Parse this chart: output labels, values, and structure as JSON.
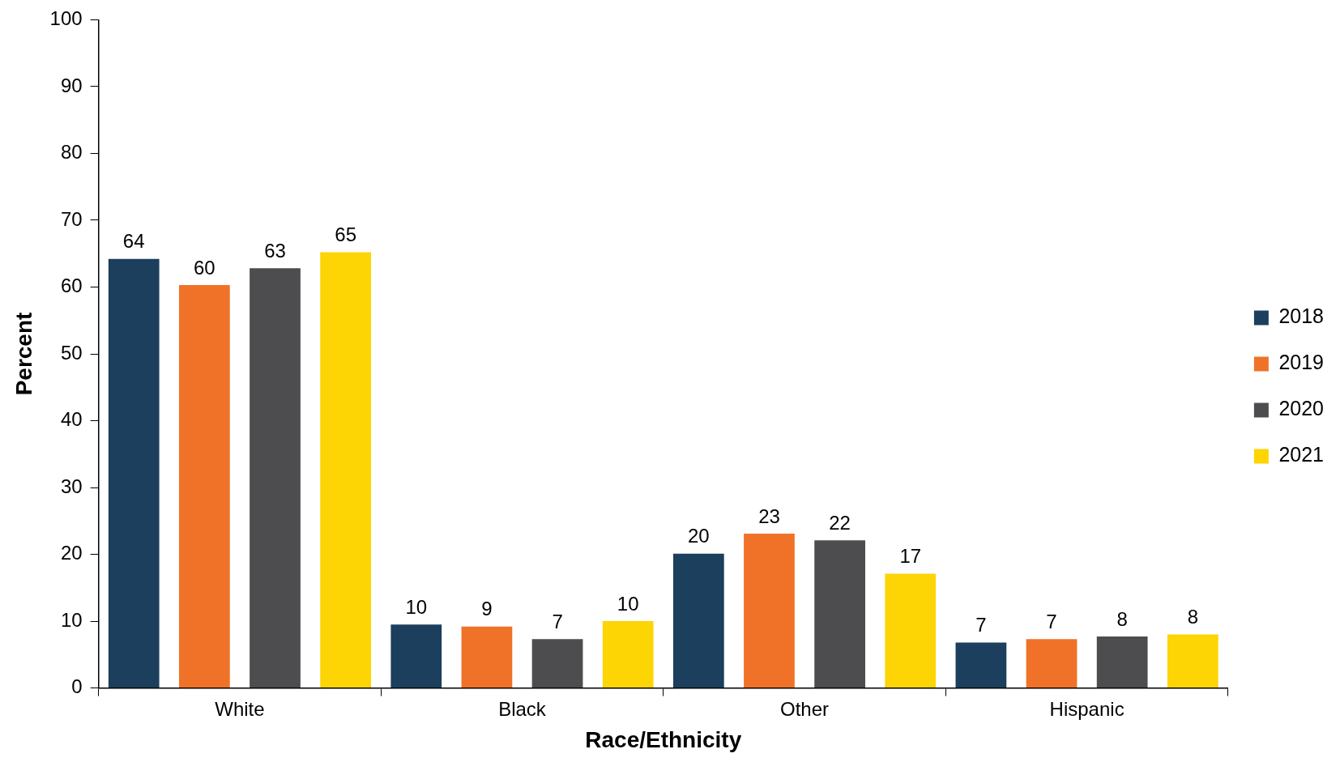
{
  "chart_data": {
    "type": "bar",
    "xlabel": "Race/Ethnicity",
    "ylabel": "Percent",
    "categories": [
      "White",
      "Black",
      "Other",
      "Hispanic"
    ],
    "series": [
      {
        "name": "2018",
        "color": "#1b3f5c",
        "values": [
          64.2,
          9.5,
          20.1,
          6.8
        ],
        "value_labels": [
          "64",
          "10",
          "20",
          "7"
        ]
      },
      {
        "name": "2019",
        "color": "#f07228",
        "values": [
          60.3,
          9.2,
          23.1,
          7.3
        ],
        "value_labels": [
          "60",
          "9",
          "23",
          "7"
        ]
      },
      {
        "name": "2020",
        "color": "#4d4d4f",
        "values": [
          62.8,
          7.3,
          22.1,
          7.7
        ],
        "value_labels": [
          "63",
          "7",
          "22",
          "8"
        ]
      },
      {
        "name": "2021",
        "color": "#fdd404",
        "values": [
          65.2,
          10.0,
          17.1,
          8.0
        ],
        "value_labels": [
          "65",
          "10",
          "17",
          "8"
        ]
      }
    ],
    "ylim": [
      0,
      100
    ],
    "yticks": [
      0,
      10,
      20,
      30,
      40,
      50,
      60,
      70,
      80,
      90,
      100
    ],
    "grid": false,
    "legend": "right"
  }
}
